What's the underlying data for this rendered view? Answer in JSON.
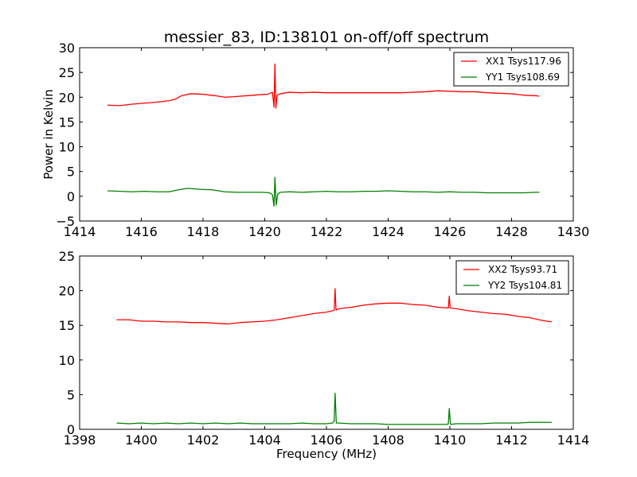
{
  "chart_data": [
    {
      "type": "line",
      "title": "messier_83, ID:138101 on-off/off spectrum",
      "xlabel": "",
      "ylabel": "Power in Kelvin",
      "xlim": [
        1414,
        1430
      ],
      "ylim": [
        -5,
        30
      ],
      "xticks": [
        1414,
        1416,
        1418,
        1420,
        1422,
        1424,
        1426,
        1428,
        1430
      ],
      "yticks": [
        -5,
        0,
        5,
        10,
        15,
        20,
        25,
        30
      ],
      "legend_position": "top-right",
      "series": [
        {
          "name": "XX1 Tsys117.96",
          "color": "#ff0000",
          "x": [
            1414.9,
            1415.3,
            1415.7,
            1416.1,
            1416.5,
            1416.9,
            1417.1,
            1417.3,
            1417.6,
            1418.0,
            1418.4,
            1418.7,
            1419.0,
            1419.4,
            1419.8,
            1420.1,
            1420.25,
            1420.3,
            1420.33,
            1420.36,
            1420.4,
            1420.5,
            1420.8,
            1421.2,
            1421.6,
            1422.0,
            1422.4,
            1422.8,
            1423.2,
            1423.6,
            1424.0,
            1424.4,
            1424.8,
            1425.2,
            1425.6,
            1426.0,
            1426.4,
            1426.8,
            1427.2,
            1427.6,
            1428.0,
            1428.4,
            1428.8,
            1428.9
          ],
          "values": [
            18.4,
            18.3,
            18.6,
            18.8,
            19.0,
            19.3,
            19.6,
            20.3,
            20.7,
            20.6,
            20.3,
            20.0,
            20.1,
            20.3,
            20.5,
            20.6,
            21.0,
            18.0,
            26.7,
            17.8,
            20.4,
            20.7,
            21.0,
            20.9,
            21.0,
            20.9,
            20.9,
            20.9,
            20.9,
            20.9,
            20.9,
            20.9,
            21.0,
            21.1,
            21.3,
            21.2,
            21.1,
            21.1,
            20.9,
            20.8,
            20.7,
            20.4,
            20.3,
            20.2
          ]
        },
        {
          "name": "YY1 Tsys108.69",
          "color": "#008000",
          "x": [
            1414.9,
            1415.3,
            1415.7,
            1416.1,
            1416.5,
            1416.9,
            1417.2,
            1417.5,
            1417.9,
            1418.3,
            1418.7,
            1419.1,
            1419.5,
            1419.9,
            1420.15,
            1420.25,
            1420.3,
            1420.33,
            1420.37,
            1420.42,
            1420.5,
            1420.8,
            1421.2,
            1421.6,
            1422.0,
            1422.4,
            1422.8,
            1423.2,
            1423.6,
            1424.0,
            1424.4,
            1424.8,
            1425.2,
            1425.6,
            1426.0,
            1426.4,
            1426.8,
            1427.2,
            1427.6,
            1428.0,
            1428.4,
            1428.8,
            1428.9
          ],
          "values": [
            1.1,
            1.0,
            0.9,
            1.0,
            0.9,
            0.9,
            1.3,
            1.6,
            1.4,
            1.3,
            0.9,
            0.8,
            0.8,
            0.8,
            0.7,
            0.3,
            -2.0,
            3.8,
            -1.8,
            0.4,
            0.8,
            0.9,
            0.8,
            0.9,
            1.0,
            0.9,
            0.9,
            1.0,
            1.0,
            1.1,
            1.0,
            0.9,
            0.9,
            0.8,
            0.9,
            0.8,
            0.8,
            0.7,
            0.7,
            0.7,
            0.7,
            0.8,
            0.8
          ]
        }
      ]
    },
    {
      "type": "line",
      "title": "",
      "xlabel": "Frequency (MHz)",
      "ylabel": "",
      "xlim": [
        1398,
        1414
      ],
      "ylim": [
        0,
        25
      ],
      "xticks": [
        1398,
        1400,
        1402,
        1404,
        1406,
        1408,
        1410,
        1412,
        1414
      ],
      "yticks": [
        0,
        5,
        10,
        15,
        20,
        25
      ],
      "legend_position": "top-right",
      "series": [
        {
          "name": "XX2 Tsys93.71",
          "color": "#ff0000",
          "x": [
            1399.2,
            1399.6,
            1400.0,
            1400.4,
            1400.8,
            1401.2,
            1401.6,
            1402.0,
            1402.4,
            1402.8,
            1403.2,
            1403.6,
            1404.0,
            1404.4,
            1404.8,
            1405.2,
            1405.6,
            1406.0,
            1406.2,
            1406.25,
            1406.28,
            1406.31,
            1406.4,
            1406.8,
            1407.2,
            1407.6,
            1408.0,
            1408.4,
            1408.8,
            1409.2,
            1409.6,
            1409.95,
            1409.98,
            1410.01,
            1410.2,
            1410.6,
            1411.0,
            1411.4,
            1411.8,
            1412.2,
            1412.6,
            1413.0,
            1413.3
          ],
          "values": [
            15.8,
            15.8,
            15.6,
            15.6,
            15.5,
            15.5,
            15.4,
            15.4,
            15.3,
            15.2,
            15.4,
            15.5,
            15.6,
            15.8,
            16.1,
            16.4,
            16.7,
            16.9,
            17.1,
            17.2,
            20.3,
            17.2,
            17.4,
            17.6,
            17.9,
            18.1,
            18.2,
            18.2,
            18.0,
            17.9,
            17.6,
            17.5,
            19.2,
            17.5,
            17.4,
            17.1,
            16.9,
            16.7,
            16.6,
            16.3,
            16.1,
            15.7,
            15.5
          ]
        },
        {
          "name": "YY2 Tsys104.81",
          "color": "#008000",
          "x": [
            1399.2,
            1399.6,
            1400.0,
            1400.4,
            1400.8,
            1401.2,
            1401.6,
            1402.0,
            1402.4,
            1402.8,
            1403.2,
            1403.6,
            1404.0,
            1404.4,
            1404.8,
            1405.2,
            1405.6,
            1406.0,
            1406.2,
            1406.25,
            1406.28,
            1406.32,
            1406.4,
            1406.8,
            1407.2,
            1407.6,
            1408.0,
            1408.4,
            1408.8,
            1409.2,
            1409.6,
            1409.9,
            1409.95,
            1409.98,
            1410.02,
            1410.2,
            1410.6,
            1411.0,
            1411.4,
            1411.8,
            1412.2,
            1412.6,
            1413.0,
            1413.3
          ],
          "values": [
            0.9,
            0.8,
            0.9,
            0.8,
            0.9,
            0.8,
            0.9,
            0.8,
            0.9,
            0.8,
            0.9,
            0.8,
            0.8,
            0.8,
            0.8,
            0.9,
            0.8,
            0.8,
            0.9,
            1.2,
            5.2,
            0.9,
            0.9,
            0.8,
            0.8,
            0.8,
            0.7,
            0.7,
            0.7,
            0.7,
            0.7,
            0.7,
            0.8,
            3.0,
            0.7,
            0.8,
            0.8,
            0.8,
            0.9,
            0.9,
            0.9,
            1.0,
            1.0,
            1.0
          ]
        }
      ]
    }
  ]
}
